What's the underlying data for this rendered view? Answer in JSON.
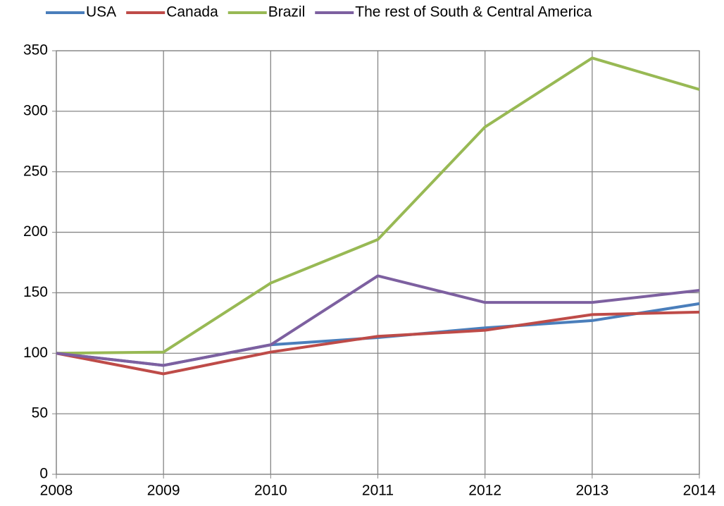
{
  "chart_data": {
    "type": "line",
    "x": [
      2008,
      2009,
      2010,
      2011,
      2012,
      2013,
      2014
    ],
    "xlim": [
      2008,
      2014
    ],
    "xticks": [
      2008,
      2009,
      2010,
      2011,
      2012,
      2013,
      2014
    ],
    "ylim": [
      0,
      350
    ],
    "yticks": [
      0,
      50,
      100,
      150,
      200,
      250,
      300,
      350
    ],
    "grid": true,
    "legend": "top",
    "series": [
      {
        "name": "USA",
        "color": "#4a7ebb",
        "values": [
          100,
          90,
          107,
          113,
          121,
          127,
          141
        ]
      },
      {
        "name": "Canada",
        "color": "#be4b48",
        "values": [
          100,
          83,
          101,
          114,
          119,
          132,
          134
        ]
      },
      {
        "name": "Brazil",
        "color": "#98b954",
        "values": [
          100,
          101,
          158,
          194,
          287,
          344,
          318
        ]
      },
      {
        "name": "The rest of South & Central America",
        "color": "#7d60a0",
        "values": [
          100,
          90,
          107,
          164,
          142,
          142,
          152
        ]
      }
    ]
  }
}
